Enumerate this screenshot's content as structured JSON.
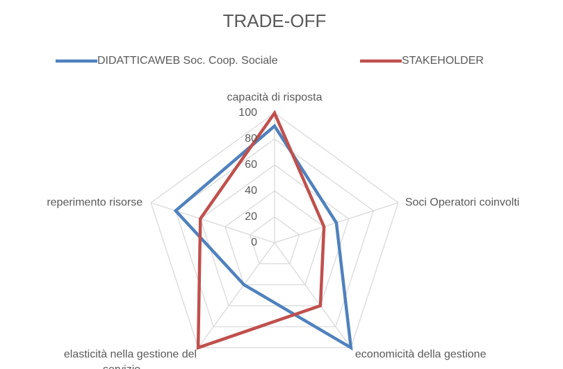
{
  "chart_data": {
    "type": "radar",
    "title": "TRADE-OFF",
    "categories": [
      "capacità di risposta",
      "Soci Operatori coinvolti",
      "economicità della gestione",
      "elasticità  nella gestione del servizio",
      "reperimento risorse"
    ],
    "series": [
      {
        "name": "DIDATTICAWEB Soc. Coop. Sociale",
        "color": "#4f81bd",
        "values": [
          90,
          50,
          100,
          40,
          80
        ]
      },
      {
        "name": "STAKEHOLDER",
        "color": "#c0504d",
        "values": [
          100,
          40,
          60,
          100,
          60
        ]
      }
    ],
    "ylim": [
      0,
      100
    ],
    "yticks": [
      0,
      20,
      40,
      60,
      80,
      100
    ],
    "grid": true,
    "legend": "top"
  }
}
